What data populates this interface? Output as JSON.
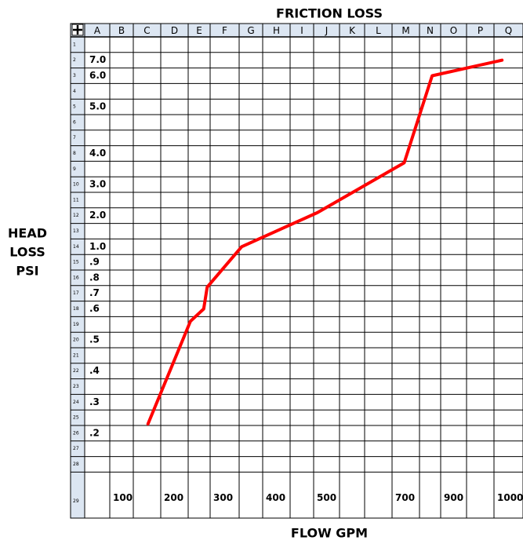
{
  "chart_data": {
    "type": "line",
    "title": "FRICTION LOSS",
    "y_label": [
      "HEAD",
      "LOSS",
      "PSI"
    ],
    "x_label": "FLOW GPM",
    "columns": [
      "A",
      "B",
      "C",
      "D",
      "E",
      "F",
      "G",
      "H",
      "I",
      "J",
      "K",
      "L",
      "M",
      "N",
      "O",
      "P",
      "Q"
    ],
    "row_numbers": [
      "1",
      "2",
      "3",
      "4",
      "5",
      "6",
      "7",
      "8",
      "9",
      "10",
      "11",
      "12",
      "13",
      "14",
      "15",
      "16",
      "17",
      "18",
      "19",
      "20",
      "21",
      "22",
      "23",
      "24",
      "25",
      "26",
      "27",
      "28",
      "29"
    ],
    "xticks": [
      100,
      200,
      300,
      400,
      500,
      700,
      900,
      1000
    ],
    "yticks": [
      {
        "value": 7,
        "label": "7.0"
      },
      {
        "value": 6,
        "label": "6.0"
      },
      {
        "value": 5,
        "label": "5.0"
      },
      {
        "value": 4,
        "label": "4.0"
      },
      {
        "value": 3,
        "label": "3.0"
      },
      {
        "value": 2,
        "label": "2.0"
      },
      {
        "value": 1,
        "label": "1.0"
      },
      {
        "value": 0.9,
        "label": ".9"
      },
      {
        "value": 0.8,
        "label": ".8"
      },
      {
        "value": 0.7,
        "label": ".7"
      },
      {
        "value": 0.6,
        "label": ".6"
      },
      {
        "value": 0.5,
        "label": ".5"
      },
      {
        "value": 0.4,
        "label": ".4"
      },
      {
        "value": 0.3,
        "label": ".3"
      },
      {
        "value": 0.2,
        "label": ".2"
      }
    ],
    "x": [
      175,
      260,
      287,
      294,
      360,
      510,
      750,
      865,
      1015
    ],
    "values": [
      0.23,
      0.56,
      0.6,
      0.74,
      1.0,
      2.1,
      3.7,
      6.0,
      7.0
    ],
    "color": "#ff0000"
  }
}
